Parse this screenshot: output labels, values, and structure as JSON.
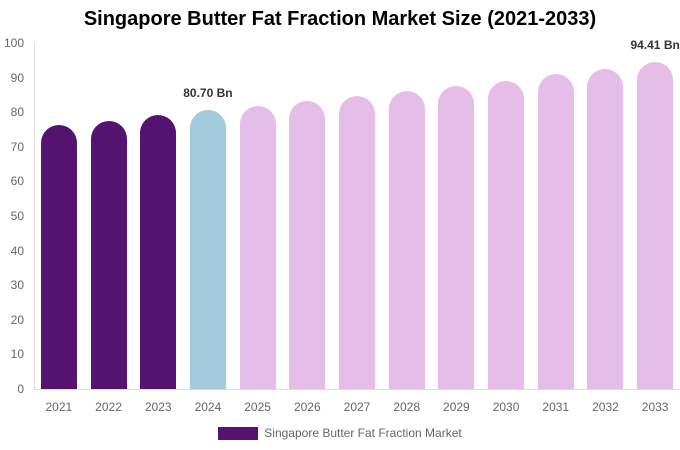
{
  "chart_data": {
    "type": "bar",
    "title": "Singapore Butter Fat Fraction Market Size (2021-2033)",
    "xlabel": "",
    "ylabel": "",
    "ylim": [
      0,
      100
    ],
    "yticks": [
      0,
      10,
      20,
      30,
      40,
      50,
      60,
      70,
      80,
      90,
      100
    ],
    "grid": false,
    "legend_position": "bottom",
    "categories": [
      "2021",
      "2022",
      "2023",
      "2024",
      "2025",
      "2026",
      "2027",
      "2028",
      "2029",
      "2030",
      "2031",
      "2032",
      "2033"
    ],
    "series": [
      {
        "name": "Singapore Butter Fat Fraction Market",
        "values": [
          76.4,
          77.6,
          79.1,
          80.7,
          81.8,
          83.2,
          84.7,
          86.1,
          87.6,
          89.1,
          90.9,
          92.5,
          94.41
        ],
        "colors": [
          "#541271",
          "#541271",
          "#541271",
          "#a3c9de",
          "#e6bce8",
          "#e6bce8",
          "#e6bce8",
          "#e6bce8",
          "#e6bce8",
          "#e6bce8",
          "#e6bce8",
          "#e6bce8",
          "#e6bce8"
        ]
      }
    ],
    "annotations": [
      {
        "category": "2024",
        "text": "80.70 Bn"
      },
      {
        "category": "2033",
        "text": "94.41 Bn"
      }
    ]
  },
  "legend": {
    "label": "Singapore Butter Fat Fraction Market",
    "color": "#541271"
  }
}
